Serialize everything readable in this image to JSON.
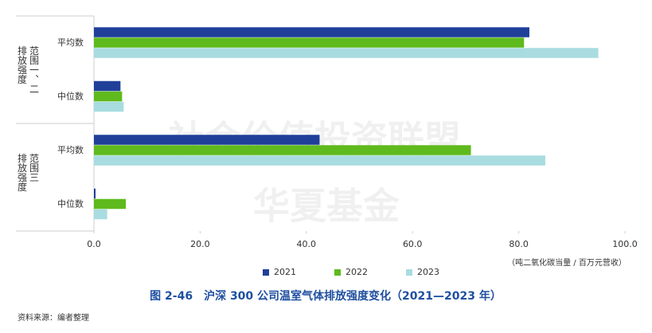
{
  "chart_data": {
    "type": "bar",
    "orientation": "horizontal",
    "groups": [
      {
        "label_lines": [
          "范围一、二",
          "排放强度"
        ],
        "categories": [
          "平均数",
          "中位数"
        ]
      },
      {
        "label_lines": [
          "范围三",
          "排放强度"
        ],
        "categories": [
          "平均数",
          "中位数"
        ]
      }
    ],
    "series": [
      {
        "name": "2021",
        "color": "#1f3f99",
        "values": [
          82,
          5,
          42.5,
          0.3
        ]
      },
      {
        "name": "2022",
        "color": "#5fba1d",
        "values": [
          81,
          5.3,
          71,
          6
        ]
      },
      {
        "name": "2023",
        "color": "#a8dce0",
        "values": [
          95,
          5.6,
          85,
          2.5
        ]
      }
    ],
    "xlim": [
      0,
      100
    ],
    "xticks": [
      {
        "value": 0,
        "label": "0.0"
      },
      {
        "value": 20,
        "label": "20.0"
      },
      {
        "value": 40,
        "label": "40.0"
      },
      {
        "value": 60,
        "label": "60.0"
      },
      {
        "value": 80,
        "label": "80.0"
      },
      {
        "value": 100,
        "label": "100.0"
      }
    ],
    "unit_label": "（吨二氧化碳当量 / 百万元营收）",
    "watermark": [
      "社会价值投资联盟",
      "华夏基金"
    ],
    "caption": "图 2-46　沪深 300 公司温室气体排放强度变化（2021—2023 年）",
    "source": "资料来源：编者整理"
  }
}
